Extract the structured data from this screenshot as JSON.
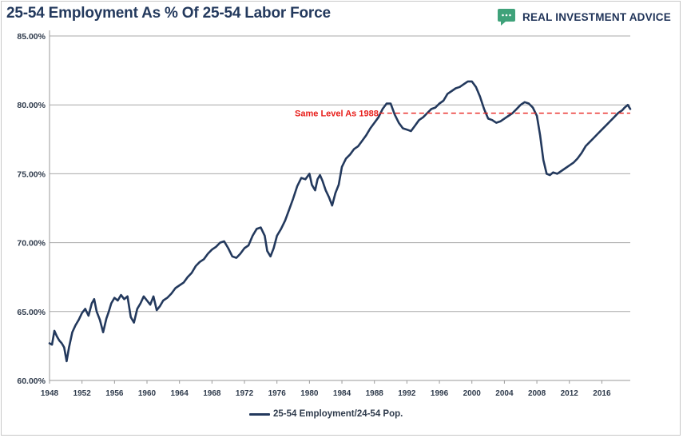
{
  "header": {
    "title": "25-54 Employment As % Of 25-54 Labor Force",
    "brand_name": "REAL INVESTMENT ADVICE",
    "brand_icon": "chat-bubble-icon",
    "brand_color": "#3fa27a"
  },
  "chart_data": {
    "type": "line",
    "title": "25-54 Employment As % Of 25-54 Labor Force",
    "xlabel": "",
    "ylabel": "",
    "ylim": [
      60,
      85
    ],
    "xlim": [
      1948,
      2019.5
    ],
    "y_ticks": [
      "60.00%",
      "65.00%",
      "70.00%",
      "75.00%",
      "80.00%",
      "85.00%"
    ],
    "x_ticks": [
      "1948",
      "1952",
      "1956",
      "1960",
      "1964",
      "1968",
      "1972",
      "1976",
      "1980",
      "1984",
      "1988",
      "1992",
      "1996",
      "2000",
      "2004",
      "2008",
      "2012",
      "2016"
    ],
    "grid": "horizontal",
    "legend_position": "bottom",
    "series": [
      {
        "name": "25-54 Employment/24-54 Pop.",
        "color": "#23395d",
        "x": [
          1948.0,
          1948.3,
          1948.6,
          1948.9,
          1949.2,
          1949.5,
          1949.8,
          1950.1,
          1950.4,
          1950.8,
          1951.2,
          1951.6,
          1952.0,
          1952.4,
          1952.8,
          1953.2,
          1953.5,
          1953.8,
          1954.2,
          1954.6,
          1955.0,
          1955.3,
          1955.6,
          1956.0,
          1956.4,
          1956.8,
          1957.2,
          1957.6,
          1958.0,
          1958.4,
          1958.8,
          1959.2,
          1959.6,
          1960.0,
          1960.4,
          1960.8,
          1961.2,
          1961.6,
          1962.0,
          1962.5,
          1963.0,
          1963.5,
          1964.0,
          1964.5,
          1965.0,
          1965.5,
          1966.0,
          1966.5,
          1967.0,
          1967.5,
          1968.0,
          1968.5,
          1969.0,
          1969.5,
          1970.0,
          1970.5,
          1971.0,
          1971.5,
          1972.0,
          1972.5,
          1973.0,
          1973.5,
          1974.0,
          1974.5,
          1974.8,
          1975.2,
          1975.6,
          1976.0,
          1976.5,
          1977.0,
          1977.5,
          1978.0,
          1978.5,
          1979.0,
          1979.5,
          1980.0,
          1980.3,
          1980.7,
          1981.0,
          1981.3,
          1981.6,
          1982.0,
          1982.4,
          1982.8,
          1983.2,
          1983.6,
          1984.0,
          1984.5,
          1985.0,
          1985.5,
          1986.0,
          1986.5,
          1987.0,
          1987.5,
          1988.0,
          1988.5,
          1989.0,
          1989.5,
          1990.0,
          1990.5,
          1991.0,
          1991.5,
          1992.0,
          1992.5,
          1993.0,
          1993.5,
          1994.0,
          1994.5,
          1995.0,
          1995.5,
          1996.0,
          1996.5,
          1997.0,
          1997.5,
          1998.0,
          1998.5,
          1999.0,
          1999.5,
          2000.0,
          2000.5,
          2001.0,
          2001.5,
          2002.0,
          2002.5,
          2003.0,
          2003.5,
          2004.0,
          2004.5,
          2005.0,
          2005.5,
          2006.0,
          2006.5,
          2007.0,
          2007.5,
          2008.0,
          2008.4,
          2008.8,
          2009.2,
          2009.6,
          2010.0,
          2010.5,
          2011.0,
          2011.5,
          2012.0,
          2012.5,
          2013.0,
          2013.5,
          2014.0,
          2014.5,
          2015.0,
          2015.5,
          2016.0,
          2016.5,
          2017.0,
          2017.5,
          2018.0,
          2018.5,
          2018.8,
          2019.2,
          2019.5
        ],
        "values": [
          62.7,
          62.6,
          63.6,
          63.2,
          62.9,
          62.7,
          62.4,
          61.4,
          62.4,
          63.5,
          64.0,
          64.4,
          64.9,
          65.2,
          64.7,
          65.6,
          65.9,
          65.0,
          64.4,
          63.5,
          64.5,
          65.0,
          65.6,
          66.0,
          65.8,
          66.2,
          65.9,
          66.1,
          64.6,
          64.2,
          65.2,
          65.6,
          66.1,
          65.8,
          65.5,
          66.1,
          65.1,
          65.4,
          65.8,
          66.0,
          66.3,
          66.7,
          66.9,
          67.1,
          67.5,
          67.8,
          68.3,
          68.6,
          68.8,
          69.2,
          69.5,
          69.7,
          70.0,
          70.1,
          69.6,
          69.0,
          68.9,
          69.2,
          69.6,
          69.8,
          70.5,
          71.0,
          71.1,
          70.5,
          69.4,
          69.0,
          69.6,
          70.5,
          71.0,
          71.6,
          72.4,
          73.2,
          74.1,
          74.7,
          74.6,
          75.0,
          74.2,
          73.8,
          74.6,
          74.9,
          74.5,
          73.8,
          73.3,
          72.7,
          73.6,
          74.2,
          75.5,
          76.1,
          76.4,
          76.8,
          77.0,
          77.4,
          77.8,
          78.3,
          78.7,
          79.1,
          79.7,
          80.1,
          80.1,
          79.3,
          78.7,
          78.3,
          78.2,
          78.1,
          78.5,
          78.9,
          79.1,
          79.4,
          79.7,
          79.8,
          80.1,
          80.3,
          80.8,
          81.0,
          81.2,
          81.3,
          81.5,
          81.7,
          81.7,
          81.3,
          80.6,
          79.7,
          79.0,
          78.9,
          78.7,
          78.8,
          79.0,
          79.2,
          79.4,
          79.7,
          80.0,
          80.2,
          80.1,
          79.8,
          79.2,
          77.8,
          76.0,
          75.0,
          74.9,
          75.1,
          75.0,
          75.2,
          75.4,
          75.6,
          75.8,
          76.1,
          76.5,
          77.0,
          77.3,
          77.6,
          77.9,
          78.2,
          78.5,
          78.8,
          79.1,
          79.4,
          79.6,
          79.8,
          80.0,
          79.7
        ]
      }
    ],
    "reference_line": {
      "label": "Same Level As 1988",
      "value": 79.4,
      "x_start": 1988.6,
      "x_end": 2019.5,
      "color": "#e8201c"
    }
  }
}
